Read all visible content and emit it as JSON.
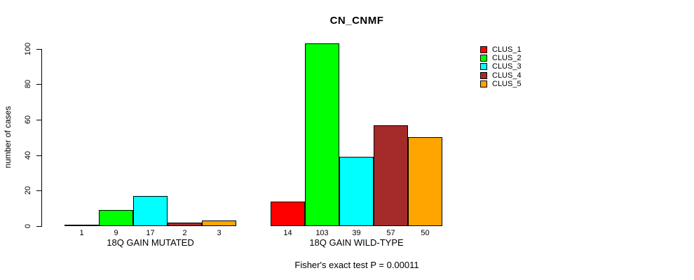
{
  "title": "CN_CNMF",
  "footer": "Fisher's exact test P = 0.00011",
  "chart_data": {
    "type": "bar",
    "title": "CN_CNMF",
    "xlabel": "",
    "ylabel": "number of cases",
    "ylim": [
      0,
      100
    ],
    "yticks": [
      0,
      20,
      40,
      60,
      80,
      100
    ],
    "grid": false,
    "legend_position": "right-inside",
    "bar_value_labels_shown": true,
    "categories": [
      "18Q GAIN MUTATED",
      "18Q GAIN WILD-TYPE"
    ],
    "series": [
      {
        "name": "CLUS_1",
        "color": "#FF0000",
        "values": [
          1,
          14
        ]
      },
      {
        "name": "CLUS_2",
        "color": "#00FF00",
        "values": [
          9,
          103
        ]
      },
      {
        "name": "CLUS_3",
        "color": "#00FFFF",
        "values": [
          17,
          39
        ]
      },
      {
        "name": "CLUS_4",
        "color": "#A52A2A",
        "values": [
          2,
          57
        ]
      },
      {
        "name": "CLUS_5",
        "color": "#FFA500",
        "values": [
          3,
          50
        ]
      }
    ],
    "annotation": "Fisher's exact test P = 0.00011"
  },
  "legend": {
    "items": [
      {
        "label": "CLUS_1",
        "color": "#FF0000"
      },
      {
        "label": "CLUS_2",
        "color": "#00FF00"
      },
      {
        "label": "CLUS_3",
        "color": "#00FFFF"
      },
      {
        "label": "CLUS_4",
        "color": "#A52A2A"
      },
      {
        "label": "CLUS_5",
        "color": "#FFA500"
      }
    ]
  }
}
